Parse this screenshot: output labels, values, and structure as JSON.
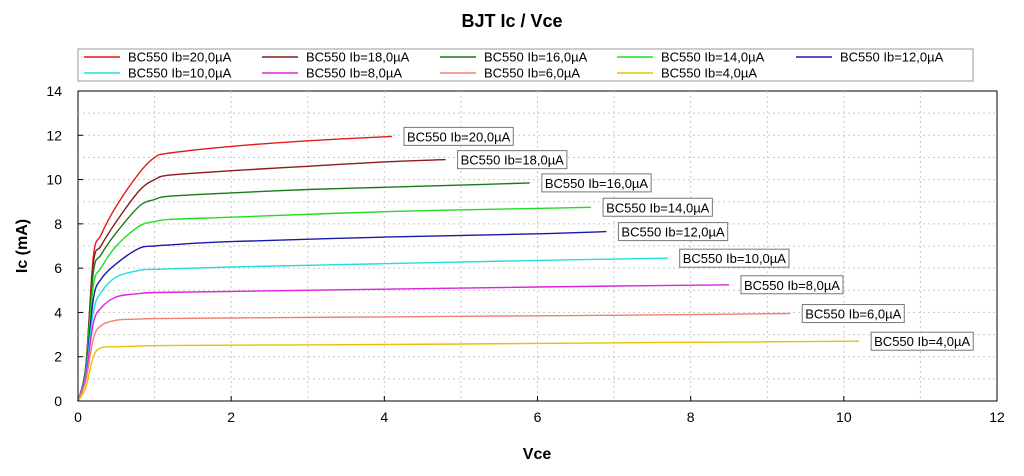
{
  "chart_data": {
    "type": "line",
    "title": "BJT Ic / Vce",
    "xlabel": "Vce",
    "ylabel": "Ic (mA)",
    "xlim": [
      0,
      12
    ],
    "ylim": [
      0,
      14
    ],
    "xticks": [
      "0",
      "2",
      "4",
      "6",
      "8",
      "10",
      "12"
    ],
    "yticks": [
      "0",
      "2",
      "4",
      "6",
      "8",
      "10",
      "12",
      "14"
    ],
    "grid": true,
    "legend_position": "top",
    "series": [
      {
        "name": "BC550 Ib=20,0µA",
        "color": "#e31a1c",
        "label": "BC550 Ib=20,0µA",
        "x": [
          0,
          0.1,
          0.2,
          0.3,
          0.5,
          0.8,
          1.0,
          1.2,
          2,
          3,
          4.1
        ],
        "y": [
          0,
          1.5,
          6.5,
          7.5,
          8.8,
          10.3,
          11.0,
          11.2,
          11.5,
          11.75,
          11.95
        ]
      },
      {
        "name": "BC550 Ib=18,0µA",
        "color": "#8b1a1a",
        "label": "BC550 Ib=18,0µA",
        "x": [
          0,
          0.1,
          0.2,
          0.3,
          0.5,
          0.8,
          1.0,
          1.2,
          2,
          3,
          4,
          4.8
        ],
        "y": [
          0,
          1.5,
          6.2,
          7.0,
          8.1,
          9.5,
          10.0,
          10.2,
          10.4,
          10.6,
          10.8,
          10.9
        ]
      },
      {
        "name": "BC550 Ib=16,0µA",
        "color": "#1a7a1a",
        "label": "BC550 Ib=16,0µA",
        "x": [
          0,
          0.1,
          0.2,
          0.3,
          0.5,
          0.8,
          1.0,
          1.2,
          2,
          3,
          4,
          5,
          5.9
        ],
        "y": [
          0,
          1.5,
          5.8,
          6.6,
          7.6,
          8.8,
          9.1,
          9.25,
          9.4,
          9.55,
          9.65,
          9.75,
          9.85
        ]
      },
      {
        "name": "BC550 Ib=14,0µA",
        "color": "#22dd22",
        "label": "BC550 Ib=14,0µA",
        "x": [
          0,
          0.1,
          0.2,
          0.3,
          0.5,
          0.8,
          1.0,
          1.2,
          2,
          4,
          6,
          6.7
        ],
        "y": [
          0,
          1.4,
          5.2,
          6.0,
          7.0,
          7.9,
          8.1,
          8.2,
          8.3,
          8.55,
          8.7,
          8.75
        ]
      },
      {
        "name": "BC550 Ib=12,0µA",
        "color": "#1a1aaa",
        "label": "BC550 Ib=12,0µA",
        "x": [
          0,
          0.1,
          0.2,
          0.3,
          0.5,
          0.8,
          1.0,
          1.2,
          2,
          4,
          6,
          6.9
        ],
        "y": [
          0,
          1.3,
          4.6,
          5.5,
          6.2,
          6.9,
          7.0,
          7.05,
          7.2,
          7.4,
          7.55,
          7.65
        ]
      },
      {
        "name": "BC550 Ib=10,0µA",
        "color": "#22dddd",
        "label": "BC550 Ib=10,0µA",
        "x": [
          0,
          0.1,
          0.2,
          0.3,
          0.5,
          0.8,
          1.0,
          2,
          4,
          6,
          7.7
        ],
        "y": [
          0,
          1.2,
          4.0,
          4.9,
          5.6,
          5.9,
          5.95,
          6.05,
          6.2,
          6.35,
          6.45
        ]
      },
      {
        "name": "BC550 Ib=8,0µA",
        "color": "#dd22dd",
        "label": "BC550 Ib=8,0µA",
        "x": [
          0,
          0.1,
          0.2,
          0.3,
          0.5,
          0.8,
          1.0,
          2,
          4,
          6,
          8.5
        ],
        "y": [
          0,
          1.1,
          3.5,
          4.2,
          4.7,
          4.85,
          4.9,
          4.95,
          5.05,
          5.15,
          5.25
        ]
      },
      {
        "name": "BC550 Ib=6,0µA",
        "color": "#f08070",
        "label": "BC550 Ib=6,0µA",
        "x": [
          0,
          0.1,
          0.2,
          0.3,
          0.5,
          0.8,
          1.0,
          2,
          4,
          6,
          8,
          9.3
        ],
        "y": [
          0,
          0.9,
          2.8,
          3.4,
          3.65,
          3.7,
          3.72,
          3.75,
          3.8,
          3.85,
          3.9,
          3.95
        ]
      },
      {
        "name": "BC550 Ib=4,0µA",
        "color": "#e8c000",
        "label": "BC550 Ib=4,0µA",
        "x": [
          0,
          0.1,
          0.2,
          0.3,
          0.5,
          0.8,
          1.0,
          2,
          4,
          6,
          8,
          10.2
        ],
        "y": [
          0,
          0.6,
          2.0,
          2.4,
          2.45,
          2.48,
          2.5,
          2.52,
          2.55,
          2.6,
          2.65,
          2.7
        ]
      }
    ]
  }
}
